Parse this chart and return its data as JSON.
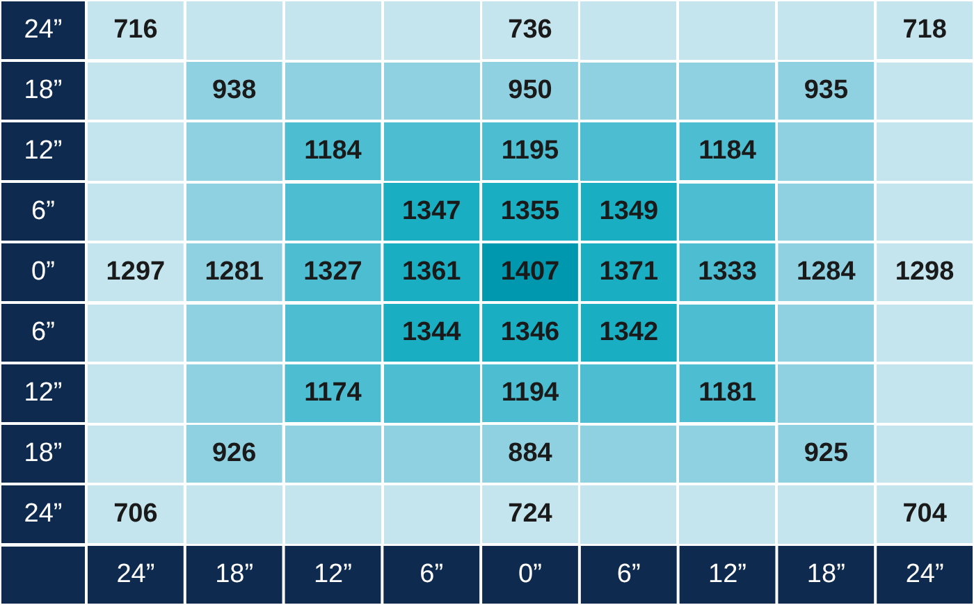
{
  "chart_data": {
    "type": "heatmap",
    "data_labels": true,
    "categories": [
      "24”",
      "18”",
      "12”",
      "6”",
      "0”",
      "6”",
      "12”",
      "18”",
      "24”"
    ],
    "y_categories": [
      "24”",
      "18”",
      "12”",
      "6”",
      "0”",
      "6”",
      "12”",
      "18”",
      "24”"
    ],
    "cells": [
      [
        716,
        null,
        null,
        null,
        736,
        null,
        null,
        null,
        718
      ],
      [
        null,
        938,
        null,
        null,
        950,
        null,
        null,
        935,
        null
      ],
      [
        null,
        null,
        1184,
        null,
        1195,
        null,
        1184,
        null,
        null
      ],
      [
        null,
        null,
        null,
        1347,
        1355,
        1349,
        null,
        null,
        null
      ],
      [
        1297,
        1281,
        1327,
        1361,
        1407,
        1371,
        1333,
        1284,
        1298
      ],
      [
        null,
        null,
        null,
        1344,
        1346,
        1342,
        null,
        null,
        null
      ],
      [
        null,
        null,
        1174,
        null,
        1194,
        null,
        1181,
        null,
        null
      ],
      [
        null,
        926,
        null,
        null,
        884,
        null,
        null,
        925,
        null
      ],
      [
        706,
        null,
        null,
        null,
        724,
        null,
        null,
        null,
        704
      ]
    ],
    "colors": [
      [
        "#c4e5ee",
        "#c4e5ee",
        "#c4e5ee",
        "#c4e5ee",
        "#c4e5ee",
        "#c4e5ee",
        "#c4e5ee",
        "#c4e5ee",
        "#c4e5ee"
      ],
      [
        "#c4e5ee",
        "#8fd1e0",
        "#8fd1e0",
        "#8fd1e0",
        "#8fd1e0",
        "#8fd1e0",
        "#8fd1e0",
        "#8fd1e0",
        "#c4e5ee"
      ],
      [
        "#c4e5ee",
        "#8fd1e0",
        "#4dbdd1",
        "#4dbdd1",
        "#4dbdd1",
        "#4dbdd1",
        "#4dbdd1",
        "#8fd1e0",
        "#c4e5ee"
      ],
      [
        "#c4e5ee",
        "#8fd1e0",
        "#4dbdd1",
        "#1aaec3",
        "#1aaec3",
        "#1aaec3",
        "#4dbdd1",
        "#8fd1e0",
        "#c4e5ee"
      ],
      [
        "#c4e5ee",
        "#8fd1e0",
        "#4dbdd1",
        "#1aaec3",
        "#0098af",
        "#1aaec3",
        "#4dbdd1",
        "#8fd1e0",
        "#c4e5ee"
      ],
      [
        "#c4e5ee",
        "#8fd1e0",
        "#4dbdd1",
        "#1aaec3",
        "#1aaec3",
        "#1aaec3",
        "#4dbdd1",
        "#8fd1e0",
        "#c4e5ee"
      ],
      [
        "#c4e5ee",
        "#8fd1e0",
        "#4dbdd1",
        "#4dbdd1",
        "#4dbdd1",
        "#4dbdd1",
        "#4dbdd1",
        "#8fd1e0",
        "#c4e5ee"
      ],
      [
        "#c4e5ee",
        "#8fd1e0",
        "#8fd1e0",
        "#8fd1e0",
        "#8fd1e0",
        "#8fd1e0",
        "#8fd1e0",
        "#8fd1e0",
        "#c4e5ee"
      ],
      [
        "#c4e5ee",
        "#c4e5ee",
        "#c4e5ee",
        "#c4e5ee",
        "#c4e5ee",
        "#c4e5ee",
        "#c4e5ee",
        "#c4e5ee",
        "#c4e5ee"
      ]
    ]
  }
}
